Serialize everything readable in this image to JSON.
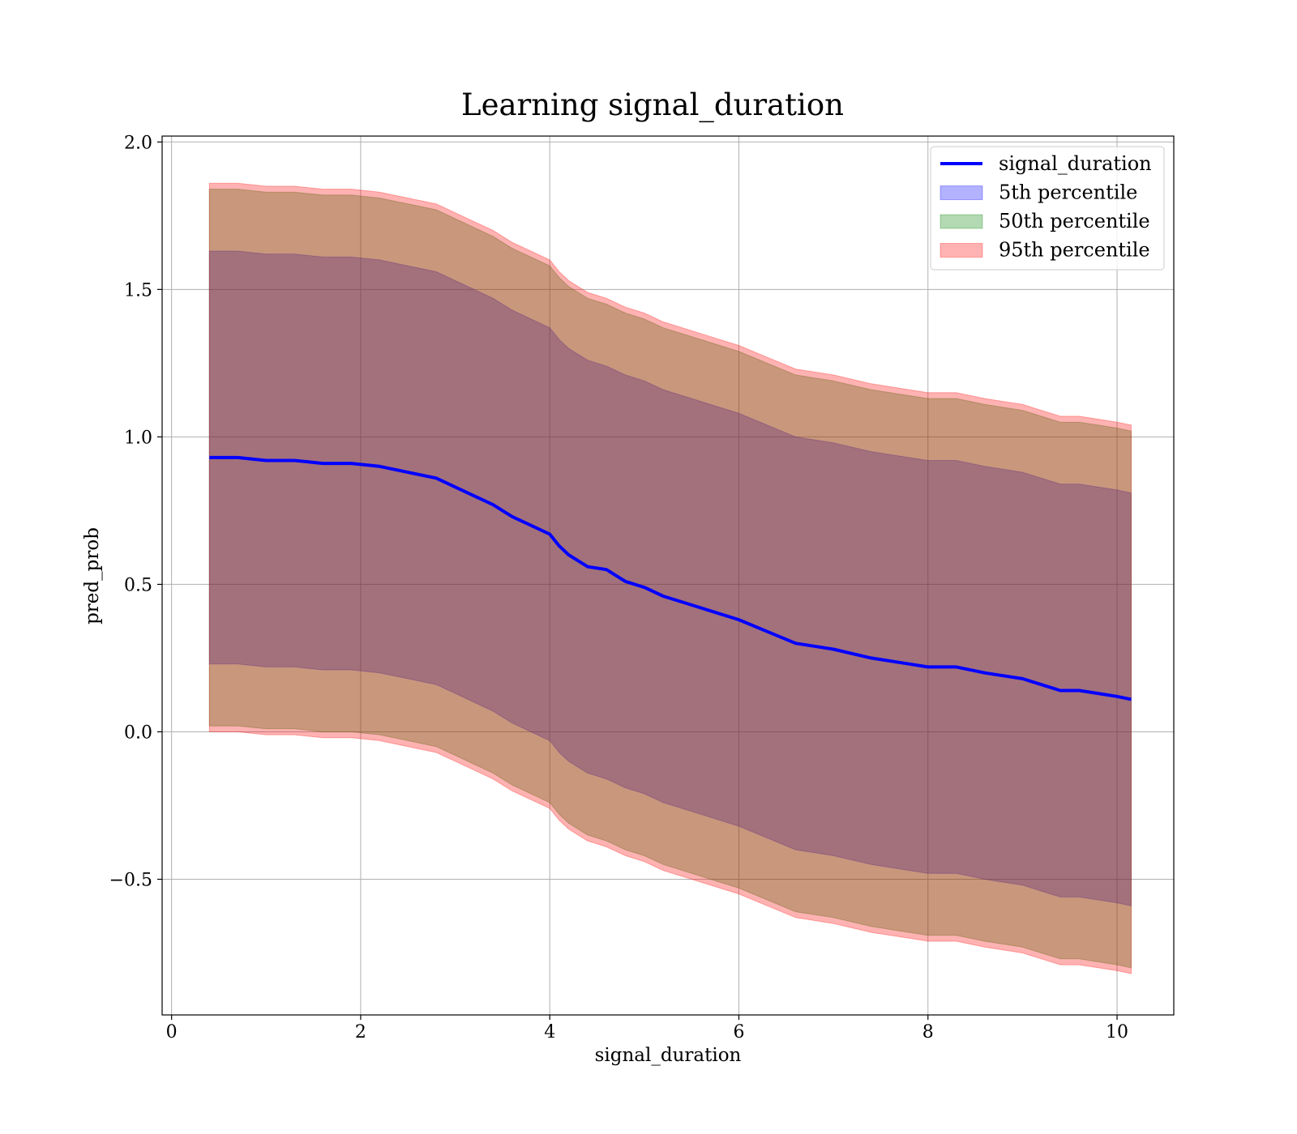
{
  "chart_data": {
    "type": "area",
    "title": "Learning signal_duration",
    "xlabel": "signal_duration",
    "ylabel": "pred_prob",
    "xlim": [
      -0.1,
      10.6
    ],
    "ylim": [
      -0.96,
      2.02
    ],
    "xticks": [
      0,
      2,
      4,
      6,
      8,
      10
    ],
    "xtick_labels": [
      "0",
      "2",
      "4",
      "6",
      "8",
      "10"
    ],
    "yticks": [
      -0.5,
      0.0,
      0.5,
      1.0,
      1.5,
      2.0
    ],
    "ytick_labels": [
      "−0.5",
      "0.0",
      "0.5",
      "1.0",
      "1.5",
      "2.0"
    ],
    "grid": true,
    "legend_position": "top-right",
    "x": [
      0.4,
      0.7,
      1.0,
      1.3,
      1.6,
      1.9,
      2.2,
      2.5,
      2.8,
      3.0,
      3.2,
      3.4,
      3.6,
      3.8,
      4.0,
      4.1,
      4.2,
      4.3,
      4.4,
      4.6,
      4.8,
      5.0,
      5.2,
      5.5,
      5.8,
      6.0,
      6.3,
      6.6,
      7.0,
      7.4,
      7.8,
      8.0,
      8.3,
      8.6,
      8.8,
      9.0,
      9.2,
      9.4,
      9.6,
      9.8,
      10.0,
      10.15
    ],
    "series": [
      {
        "name": "signal_duration",
        "kind": "line",
        "color": "#0000ff",
        "values": [
          0.93,
          0.93,
          0.92,
          0.92,
          0.91,
          0.91,
          0.9,
          0.88,
          0.86,
          0.83,
          0.8,
          0.77,
          0.73,
          0.7,
          0.67,
          0.63,
          0.6,
          0.58,
          0.56,
          0.55,
          0.51,
          0.49,
          0.46,
          0.43,
          0.4,
          0.38,
          0.34,
          0.3,
          0.28,
          0.25,
          0.23,
          0.22,
          0.22,
          0.2,
          0.19,
          0.18,
          0.16,
          0.14,
          0.14,
          0.13,
          0.12,
          0.11
        ]
      },
      {
        "name": "5th percentile",
        "kind": "band",
        "color": "#0000ff",
        "lower": [
          0.23,
          0.23,
          0.22,
          0.22,
          0.21,
          0.21,
          0.2,
          0.18,
          0.16,
          0.13,
          0.1,
          0.07,
          0.03,
          0.0,
          -0.03,
          -0.07,
          -0.1,
          -0.12,
          -0.14,
          -0.16,
          -0.19,
          -0.21,
          -0.24,
          -0.27,
          -0.3,
          -0.32,
          -0.36,
          -0.4,
          -0.42,
          -0.45,
          -0.47,
          -0.48,
          -0.48,
          -0.5,
          -0.51,
          -0.52,
          -0.54,
          -0.56,
          -0.56,
          -0.57,
          -0.58,
          -0.59
        ],
        "upper": [
          1.63,
          1.63,
          1.62,
          1.62,
          1.61,
          1.61,
          1.6,
          1.58,
          1.56,
          1.53,
          1.5,
          1.47,
          1.43,
          1.4,
          1.37,
          1.33,
          1.3,
          1.28,
          1.26,
          1.24,
          1.21,
          1.19,
          1.16,
          1.13,
          1.1,
          1.08,
          1.04,
          1.0,
          0.98,
          0.95,
          0.93,
          0.92,
          0.92,
          0.9,
          0.89,
          0.88,
          0.86,
          0.84,
          0.84,
          0.83,
          0.82,
          0.81
        ]
      },
      {
        "name": "50th percentile",
        "kind": "band",
        "color": "#008000",
        "lower": [
          0.02,
          0.02,
          0.01,
          0.01,
          0.0,
          0.0,
          -0.01,
          -0.03,
          -0.05,
          -0.08,
          -0.11,
          -0.14,
          -0.18,
          -0.21,
          -0.24,
          -0.28,
          -0.31,
          -0.33,
          -0.35,
          -0.37,
          -0.4,
          -0.42,
          -0.45,
          -0.48,
          -0.51,
          -0.53,
          -0.57,
          -0.61,
          -0.63,
          -0.66,
          -0.68,
          -0.69,
          -0.69,
          -0.71,
          -0.72,
          -0.73,
          -0.75,
          -0.77,
          -0.77,
          -0.78,
          -0.79,
          -0.8
        ],
        "upper": [
          1.84,
          1.84,
          1.83,
          1.83,
          1.82,
          1.82,
          1.81,
          1.79,
          1.77,
          1.74,
          1.71,
          1.68,
          1.64,
          1.61,
          1.58,
          1.54,
          1.51,
          1.49,
          1.47,
          1.45,
          1.42,
          1.4,
          1.37,
          1.34,
          1.31,
          1.29,
          1.25,
          1.21,
          1.19,
          1.16,
          1.14,
          1.13,
          1.13,
          1.11,
          1.1,
          1.09,
          1.07,
          1.05,
          1.05,
          1.04,
          1.03,
          1.02
        ]
      },
      {
        "name": "95th percentile",
        "kind": "band",
        "color": "#ff0000",
        "lower": [
          0.0,
          0.0,
          -0.01,
          -0.01,
          -0.02,
          -0.02,
          -0.03,
          -0.05,
          -0.07,
          -0.1,
          -0.13,
          -0.16,
          -0.2,
          -0.23,
          -0.26,
          -0.3,
          -0.33,
          -0.35,
          -0.37,
          -0.39,
          -0.42,
          -0.44,
          -0.47,
          -0.5,
          -0.53,
          -0.55,
          -0.59,
          -0.63,
          -0.65,
          -0.68,
          -0.7,
          -0.71,
          -0.71,
          -0.73,
          -0.74,
          -0.75,
          -0.77,
          -0.79,
          -0.79,
          -0.8,
          -0.81,
          -0.82
        ],
        "upper": [
          1.86,
          1.86,
          1.85,
          1.85,
          1.84,
          1.84,
          1.83,
          1.81,
          1.79,
          1.76,
          1.73,
          1.7,
          1.66,
          1.63,
          1.6,
          1.56,
          1.53,
          1.51,
          1.49,
          1.47,
          1.44,
          1.42,
          1.39,
          1.36,
          1.33,
          1.31,
          1.27,
          1.23,
          1.21,
          1.18,
          1.16,
          1.15,
          1.15,
          1.13,
          1.12,
          1.11,
          1.09,
          1.07,
          1.07,
          1.06,
          1.05,
          1.04
        ]
      }
    ]
  }
}
